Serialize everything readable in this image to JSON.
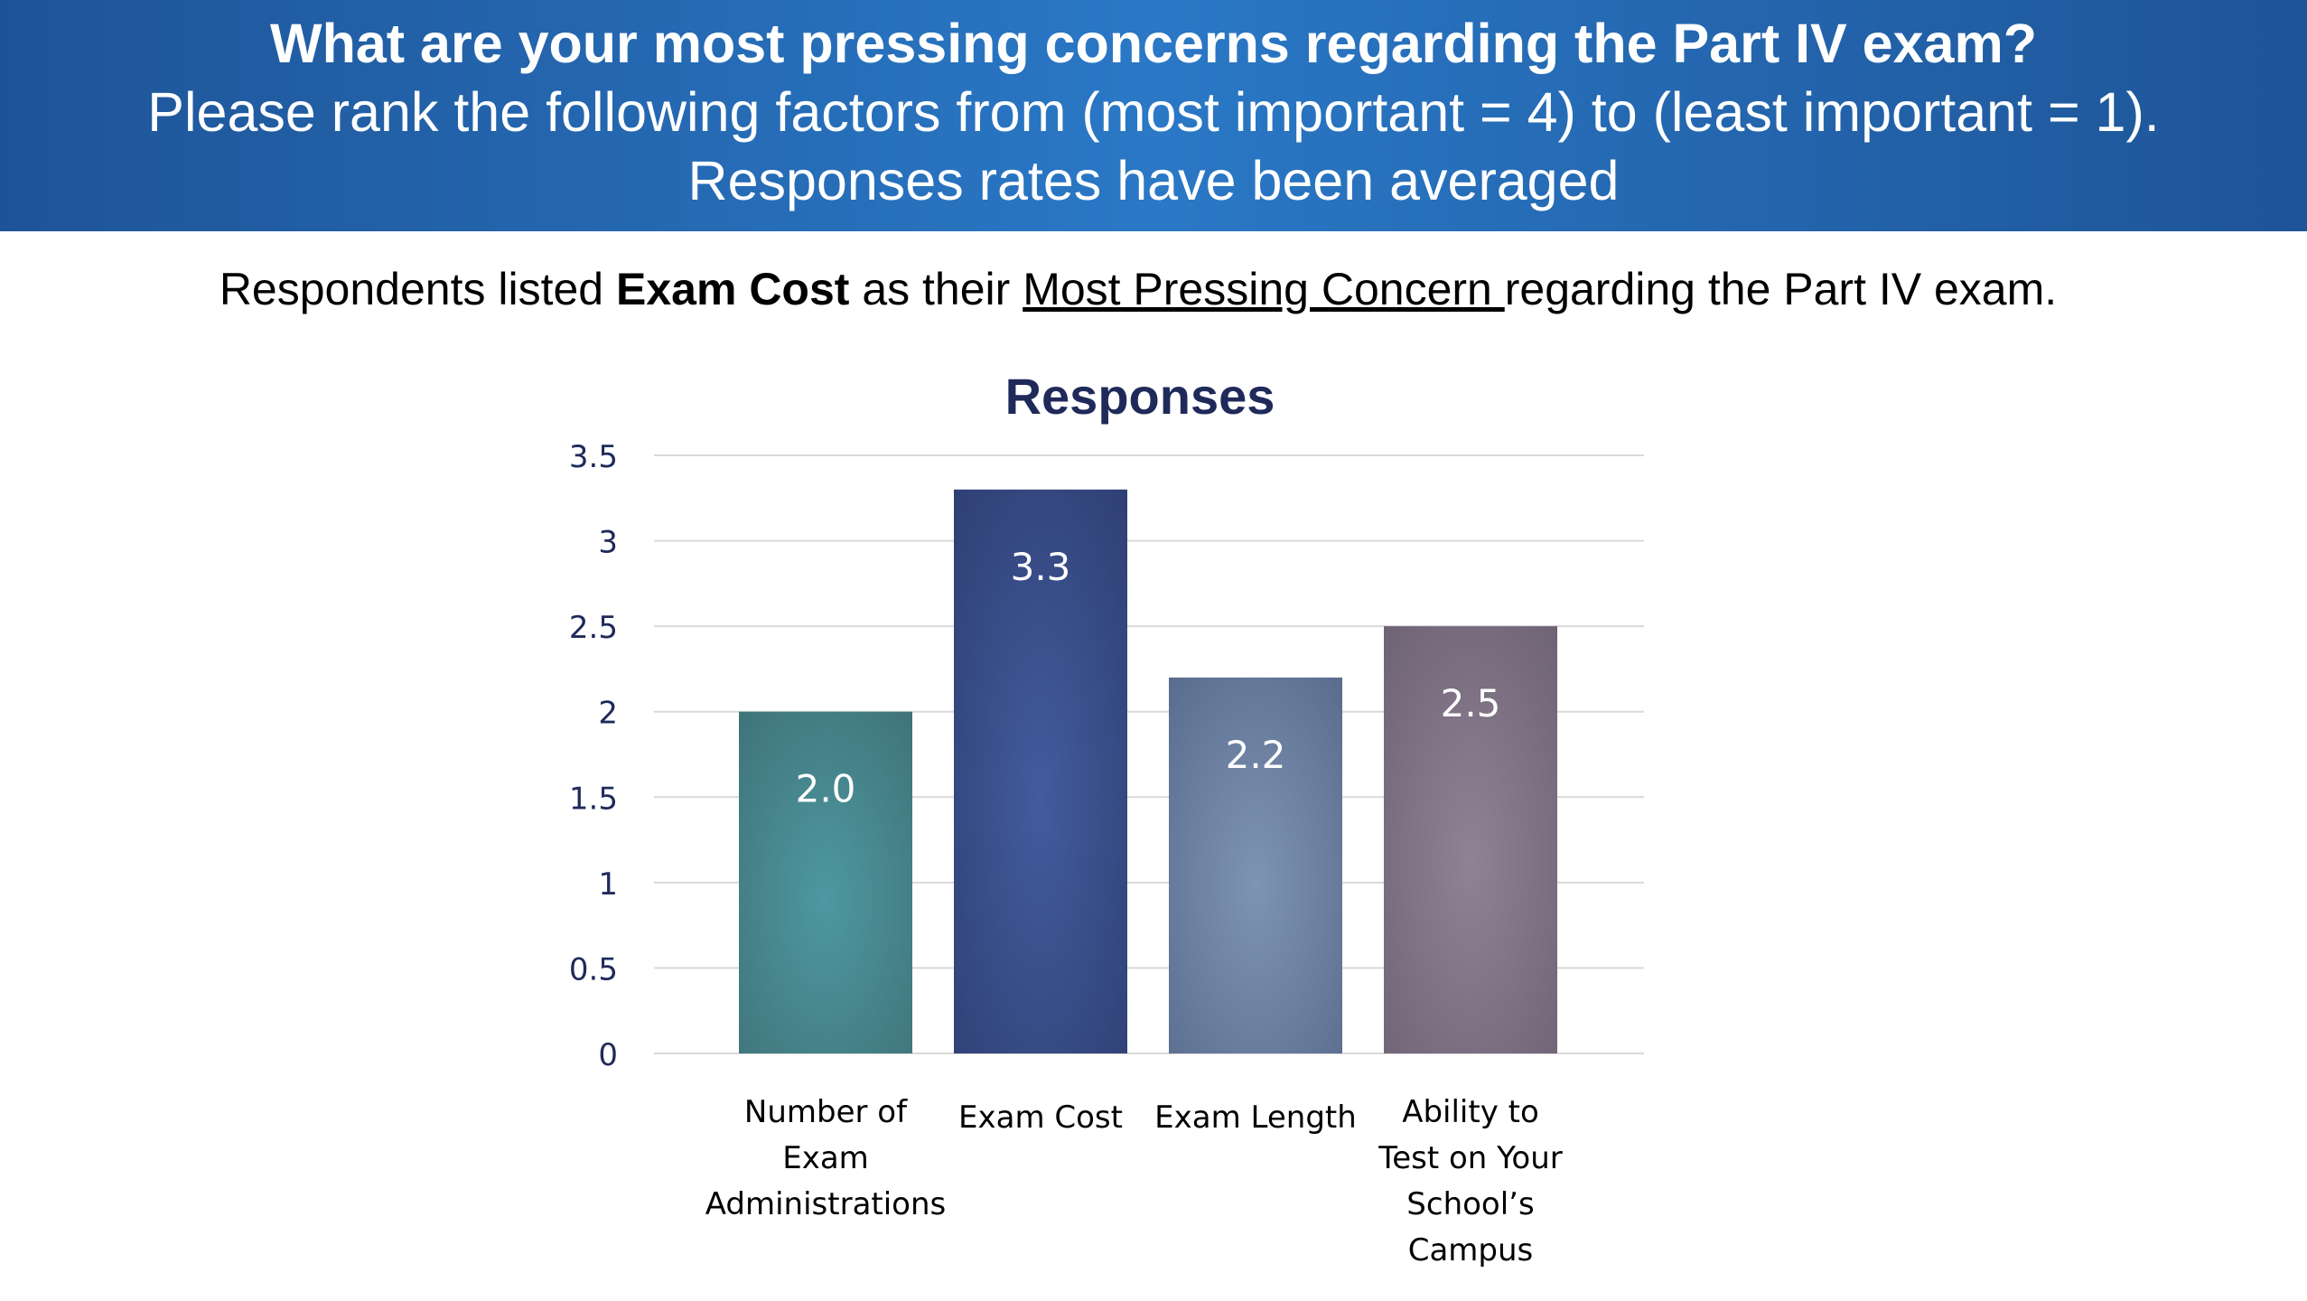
{
  "banner": {
    "line1": "What are your most pressing concerns regarding the Part IV exam?",
    "line2": "Please rank the following factors from (most important = 4) to (least important = 1).",
    "line3": "Responses rates have been averaged"
  },
  "summary": {
    "pre": "Respondents listed ",
    "bold": "Exam Cost",
    "mid": " as their ",
    "underline": "Most Pressing Concern ",
    "post": "regarding the Part IV exam."
  },
  "colors": {
    "banner_start": "#1e5497",
    "banner_mid": "#2a78c6",
    "title_color": "#1f2a5a",
    "axis_text": "#1f2a5a",
    "gridline": "#d9d9d9"
  },
  "chart_data": {
    "type": "bar",
    "title": "Responses",
    "xlabel": "",
    "ylabel": "",
    "ylim": [
      0,
      3.5
    ],
    "yticks": [
      "0",
      "0.5",
      "1",
      "1.5",
      "2",
      "2.5",
      "3",
      "3.5"
    ],
    "ytick_values": [
      0,
      0.5,
      1,
      1.5,
      2,
      2.5,
      3,
      3.5
    ],
    "grid": true,
    "legend": "none",
    "categories": [
      [
        "Number of",
        "Exam",
        "Administrations"
      ],
      [
        "Exam Cost"
      ],
      [
        "Exam Length"
      ],
      [
        "Ability to",
        "Test on Your",
        "School’s",
        "Campus"
      ]
    ],
    "values": [
      2.0,
      3.3,
      2.2,
      2.5
    ],
    "data_labels": [
      "2.0",
      "3.3",
      "2.2",
      "2.5"
    ],
    "bar_colors": [
      [
        "#3f7378",
        "#4e98a1"
      ],
      [
        "#2e3f72",
        "#435c9e"
      ],
      [
        "#5a6c8e",
        "#7e94b4"
      ],
      [
        "#6e6275",
        "#8f8294"
      ]
    ]
  }
}
